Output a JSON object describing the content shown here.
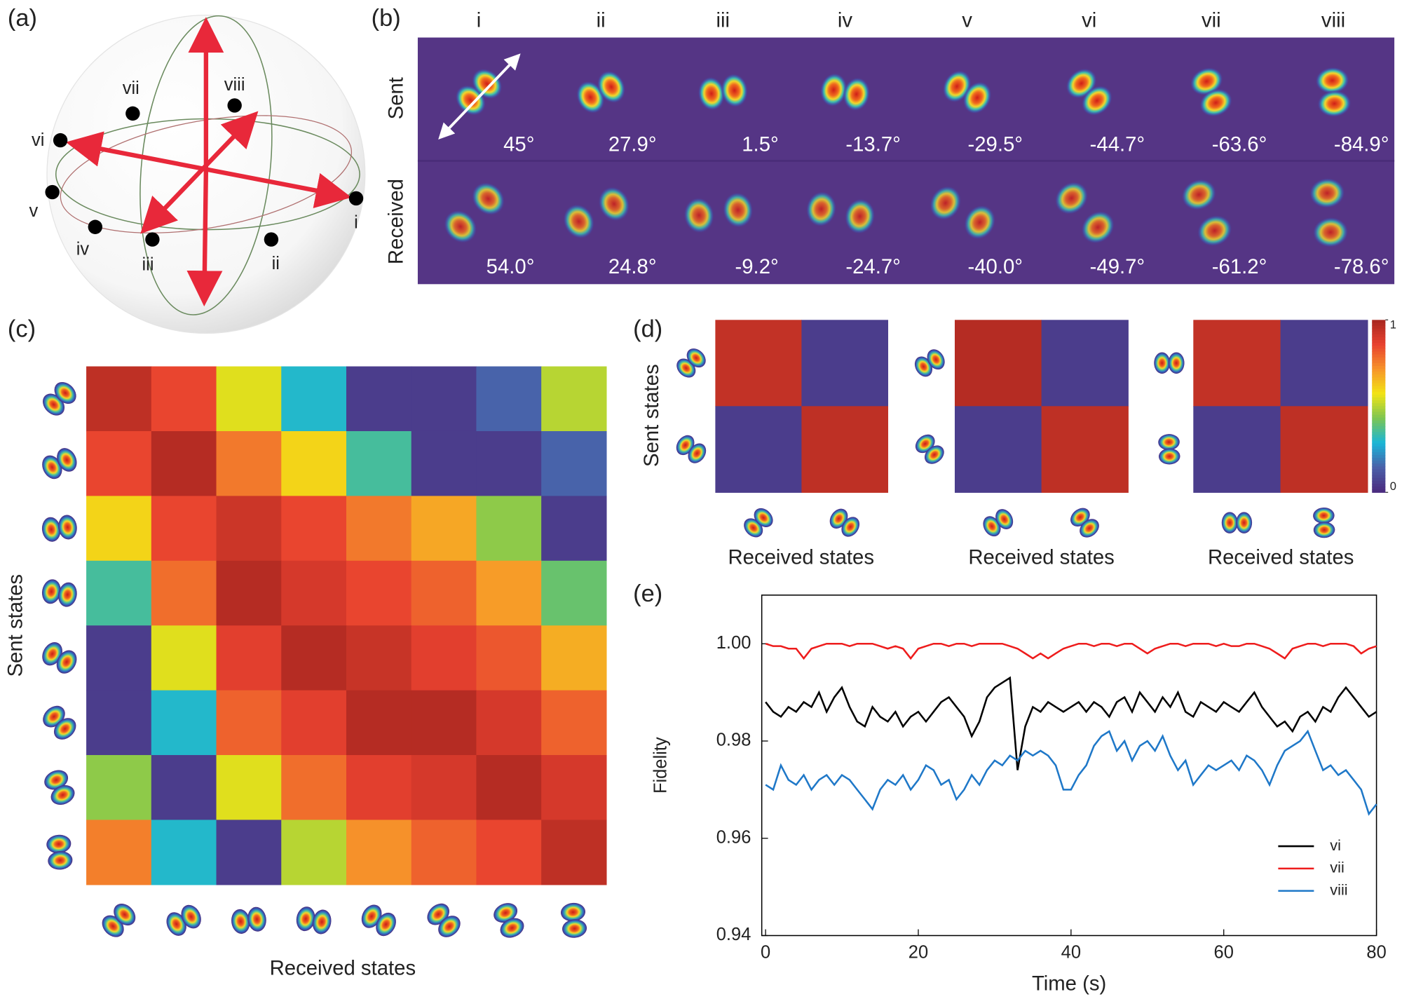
{
  "panels": [
    "(a)",
    "(b)",
    "(c)",
    "(d)",
    "(e)"
  ],
  "sphere": {
    "labels": [
      "i",
      "ii",
      "iii",
      "iv",
      "v",
      "vi",
      "vii",
      "viii"
    ]
  },
  "images": {
    "columns": [
      "i",
      "ii",
      "iii",
      "iv",
      "v",
      "vi",
      "vii",
      "viii"
    ],
    "rows": [
      "Sent",
      "Received"
    ],
    "sent_angles": [
      "45°",
      "27.9°",
      "1.5°",
      "-13.7°",
      "-29.5°",
      "-44.7°",
      "-63.6°",
      "-84.9°"
    ],
    "received_angles": [
      "54.0°",
      "24.8°",
      "-9.2°",
      "-24.7°",
      "-40.0°",
      "-49.7°",
      "-61.2°",
      "-78.6°"
    ]
  },
  "chart_data": [
    {
      "type": "heatmap",
      "xlabel": "Received states",
      "ylabel": "Sent states",
      "clim": [
        0,
        1
      ],
      "colorscale": [
        "#4b2a7d",
        "#4a5fa8",
        "#19b6d8",
        "#7cc552",
        "#f2e414",
        "#f7942a",
        "#e8412f",
        "#a72720"
      ],
      "values": [
        [
          0.95,
          0.85,
          0.55,
          0.3,
          0.05,
          0.05,
          0.15,
          0.5
        ],
        [
          0.85,
          0.97,
          0.76,
          0.6,
          0.35,
          0.05,
          0.05,
          0.15
        ],
        [
          0.6,
          0.85,
          0.92,
          0.85,
          0.76,
          0.68,
          0.45,
          0.05
        ],
        [
          0.35,
          0.78,
          0.97,
          0.9,
          0.85,
          0.8,
          0.7,
          0.4
        ],
        [
          0.05,
          0.55,
          0.87,
          0.97,
          0.93,
          0.87,
          0.82,
          0.67
        ],
        [
          0.05,
          0.3,
          0.8,
          0.87,
          0.97,
          0.97,
          0.9,
          0.8
        ],
        [
          0.45,
          0.05,
          0.55,
          0.78,
          0.87,
          0.9,
          0.97,
          0.9
        ],
        [
          0.75,
          0.3,
          0.05,
          0.5,
          0.72,
          0.8,
          0.85,
          0.95
        ]
      ]
    },
    {
      "type": "heatmap",
      "xlabel": "Received states",
      "ylabel": "Sent states",
      "clim": [
        0,
        1
      ],
      "colorscale": [
        "#4b2a7d",
        "#4a5fa8",
        "#19b6d8",
        "#7cc552",
        "#f2e414",
        "#f7942a",
        "#e8412f",
        "#a72720"
      ],
      "values": [
        [
          0.94,
          0.05
        ],
        [
          0.05,
          0.95
        ]
      ]
    },
    {
      "type": "heatmap",
      "xlabel": "Received states",
      "clim": [
        0,
        1
      ],
      "colorscale": [
        "#4b2a7d",
        "#4a5fa8",
        "#19b6d8",
        "#7cc552",
        "#f2e414",
        "#f7942a",
        "#e8412f",
        "#a72720"
      ],
      "values": [
        [
          0.97,
          0.05
        ],
        [
          0.05,
          0.95
        ]
      ]
    },
    {
      "type": "heatmap",
      "xlabel": "Received states",
      "clim": [
        0,
        1
      ],
      "colorbar_ticks": [
        0,
        1
      ],
      "colorscale": [
        "#4b2a7d",
        "#4a5fa8",
        "#19b6d8",
        "#7cc552",
        "#f2e414",
        "#f7942a",
        "#e8412f",
        "#a72720"
      ],
      "values": [
        [
          0.94,
          0.05
        ],
        [
          0.05,
          0.95
        ]
      ]
    },
    {
      "type": "line",
      "xlabel": "Time (s)",
      "ylabel": "Fidelity",
      "xlim": [
        -0.5,
        80
      ],
      "ylim": [
        0.94,
        1.01
      ],
      "xticks": [
        0,
        20,
        40,
        60,
        80
      ],
      "yticks": [
        0.94,
        0.96,
        0.98,
        {
          "value": 1.0,
          "label": "1.00"
        }
      ],
      "legend": "lower right",
      "x": [
        0,
        1,
        2,
        3,
        4,
        5,
        6,
        7,
        8,
        9,
        10,
        11,
        12,
        13,
        14,
        15,
        16,
        17,
        18,
        19,
        20,
        21,
        22,
        23,
        24,
        25,
        26,
        27,
        28,
        29,
        30,
        31,
        32,
        33,
        34,
        35,
        36,
        37,
        38,
        39,
        40,
        41,
        42,
        43,
        44,
        45,
        46,
        47,
        48,
        49,
        50,
        51,
        52,
        53,
        54,
        55,
        56,
        57,
        58,
        59,
        60,
        61,
        62,
        63,
        64,
        65,
        66,
        67,
        68,
        69,
        70,
        71,
        72,
        73,
        74,
        75,
        76,
        77,
        78,
        79,
        80
      ],
      "series": [
        {
          "name": "vi",
          "color": "#000000",
          "values": [
            0.988,
            0.986,
            0.985,
            0.987,
            0.986,
            0.988,
            0.987,
            0.99,
            0.986,
            0.989,
            0.991,
            0.987,
            0.984,
            0.983,
            0.987,
            0.985,
            0.984,
            0.986,
            0.983,
            0.985,
            0.986,
            0.984,
            0.986,
            0.988,
            0.989,
            0.987,
            0.985,
            0.981,
            0.984,
            0.989,
            0.991,
            0.992,
            0.993,
            0.974,
            0.983,
            0.987,
            0.986,
            0.988,
            0.987,
            0.986,
            0.987,
            0.988,
            0.986,
            0.988,
            0.987,
            0.985,
            0.988,
            0.989,
            0.986,
            0.99,
            0.988,
            0.986,
            0.989,
            0.987,
            0.99,
            0.986,
            0.985,
            0.988,
            0.987,
            0.986,
            0.988,
            0.987,
            0.986,
            0.988,
            0.99,
            0.987,
            0.985,
            0.983,
            0.984,
            0.982,
            0.985,
            0.986,
            0.984,
            0.987,
            0.986,
            0.989,
            0.991,
            0.989,
            0.987,
            0.985,
            0.986
          ]
        },
        {
          "name": "vii",
          "color": "#ee1c1c",
          "values": [
            1.0,
            0.9995,
            0.9995,
            0.999,
            0.999,
            0.997,
            0.999,
            0.9995,
            1.0,
            1.0,
            1.0,
            0.9995,
            1.0,
            1.0,
            1.0,
            0.9995,
            0.999,
            0.9995,
            0.999,
            0.997,
            0.999,
            0.9995,
            1.0,
            1.0,
            0.9995,
            1.0,
            1.0,
            0.9995,
            1.0,
            1.0,
            1.0,
            1.0,
            0.9995,
            0.999,
            0.998,
            0.997,
            0.998,
            0.997,
            0.998,
            0.999,
            0.9995,
            1.0,
            1.0,
            0.9995,
            1.0,
            1.0,
            0.9995,
            1.0,
            1.0,
            0.999,
            0.998,
            0.999,
            0.9995,
            1.0,
            1.0,
            0.9995,
            1.0,
            1.0,
            1.0,
            0.9995,
            1.0,
            0.9995,
            0.9995,
            1.0,
            1.0,
            0.9995,
            0.999,
            0.998,
            0.997,
            0.999,
            0.9995,
            1.0,
            1.0,
            0.9995,
            1.0,
            1.0,
            1.0,
            0.9995,
            0.998,
            0.999,
            0.9995
          ]
        },
        {
          "name": "viii",
          "color": "#1f78c8",
          "values": [
            0.971,
            0.97,
            0.975,
            0.972,
            0.971,
            0.973,
            0.97,
            0.972,
            0.973,
            0.971,
            0.973,
            0.972,
            0.97,
            0.968,
            0.966,
            0.97,
            0.972,
            0.971,
            0.973,
            0.97,
            0.972,
            0.975,
            0.974,
            0.971,
            0.972,
            0.968,
            0.97,
            0.973,
            0.971,
            0.974,
            0.976,
            0.975,
            0.977,
            0.976,
            0.978,
            0.977,
            0.978,
            0.977,
            0.975,
            0.97,
            0.97,
            0.973,
            0.975,
            0.979,
            0.981,
            0.982,
            0.978,
            0.98,
            0.976,
            0.979,
            0.98,
            0.978,
            0.981,
            0.977,
            0.974,
            0.976,
            0.971,
            0.973,
            0.975,
            0.974,
            0.975,
            0.976,
            0.974,
            0.977,
            0.976,
            0.974,
            0.971,
            0.975,
            0.978,
            0.979,
            0.98,
            0.982,
            0.978,
            0.974,
            0.975,
            0.973,
            0.974,
            0.972,
            0.97,
            0.965,
            0.967
          ]
        }
      ]
    }
  ]
}
